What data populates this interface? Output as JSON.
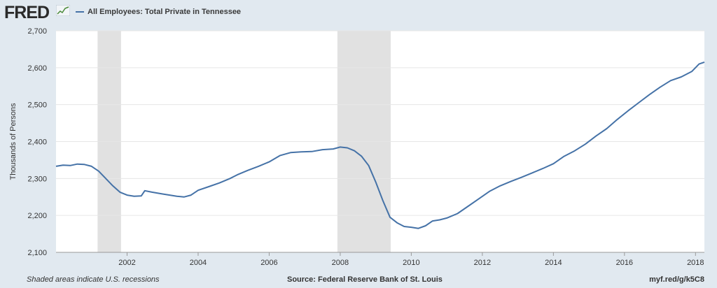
{
  "header": {
    "logo": "FRED",
    "legend": "All Employees: Total Private in Tennessee",
    "series_color": "#4572a7"
  },
  "footer": {
    "note": "Shaded areas indicate U.S. recessions",
    "source": "Source: Federal Reserve Bank of St. Louis",
    "link": "myf.red/g/k5C8"
  },
  "chart_data": {
    "type": "line",
    "title": "",
    "xlabel": "",
    "ylabel": "Thousands of Persons",
    "xlim": [
      2000.0,
      2018.25
    ],
    "ylim": [
      2100,
      2700
    ],
    "yticks": [
      2100,
      2200,
      2300,
      2400,
      2500,
      2600,
      2700
    ],
    "ytick_labels": [
      "2,100",
      "2,200",
      "2,300",
      "2,400",
      "2,500",
      "2,600",
      "2,700"
    ],
    "xticks": [
      2002,
      2004,
      2006,
      2008,
      2010,
      2012,
      2014,
      2016,
      2018
    ],
    "xtick_labels": [
      "2002",
      "2004",
      "2006",
      "2008",
      "2010",
      "2012",
      "2014",
      "2016",
      "2018"
    ],
    "grid": true,
    "recessions": [
      [
        2001.17,
        2001.83
      ],
      [
        2007.92,
        2009.42
      ]
    ],
    "series": [
      {
        "name": "All Employees: Total Private in Tennessee",
        "points": [
          [
            2000.0,
            2333
          ],
          [
            2000.2,
            2336
          ],
          [
            2000.4,
            2335
          ],
          [
            2000.6,
            2339
          ],
          [
            2000.8,
            2338
          ],
          [
            2001.0,
            2333
          ],
          [
            2001.2,
            2320
          ],
          [
            2001.4,
            2300
          ],
          [
            2001.6,
            2280
          ],
          [
            2001.8,
            2263
          ],
          [
            2002.0,
            2255
          ],
          [
            2002.2,
            2252
          ],
          [
            2002.4,
            2253
          ],
          [
            2002.5,
            2267
          ],
          [
            2002.7,
            2263
          ],
          [
            2003.0,
            2258
          ],
          [
            2003.2,
            2255
          ],
          [
            2003.4,
            2252
          ],
          [
            2003.6,
            2250
          ],
          [
            2003.8,
            2255
          ],
          [
            2004.0,
            2268
          ],
          [
            2004.3,
            2278
          ],
          [
            2004.6,
            2288
          ],
          [
            2004.9,
            2300
          ],
          [
            2005.1,
            2310
          ],
          [
            2005.4,
            2322
          ],
          [
            2005.7,
            2333
          ],
          [
            2006.0,
            2345
          ],
          [
            2006.3,
            2362
          ],
          [
            2006.6,
            2370
          ],
          [
            2006.9,
            2372
          ],
          [
            2007.2,
            2373
          ],
          [
            2007.5,
            2378
          ],
          [
            2007.8,
            2380
          ],
          [
            2008.0,
            2385
          ],
          [
            2008.2,
            2383
          ],
          [
            2008.4,
            2375
          ],
          [
            2008.6,
            2360
          ],
          [
            2008.8,
            2335
          ],
          [
            2009.0,
            2290
          ],
          [
            2009.2,
            2240
          ],
          [
            2009.4,
            2195
          ],
          [
            2009.6,
            2180
          ],
          [
            2009.8,
            2170
          ],
          [
            2010.0,
            2168
          ],
          [
            2010.2,
            2165
          ],
          [
            2010.4,
            2172
          ],
          [
            2010.6,
            2185
          ],
          [
            2010.8,
            2188
          ],
          [
            2011.0,
            2193
          ],
          [
            2011.3,
            2205
          ],
          [
            2011.6,
            2225
          ],
          [
            2011.9,
            2245
          ],
          [
            2012.2,
            2265
          ],
          [
            2012.5,
            2280
          ],
          [
            2012.8,
            2292
          ],
          [
            2013.1,
            2303
          ],
          [
            2013.4,
            2315
          ],
          [
            2013.7,
            2327
          ],
          [
            2014.0,
            2340
          ],
          [
            2014.3,
            2360
          ],
          [
            2014.6,
            2375
          ],
          [
            2014.9,
            2393
          ],
          [
            2015.2,
            2415
          ],
          [
            2015.5,
            2435
          ],
          [
            2015.8,
            2460
          ],
          [
            2016.1,
            2483
          ],
          [
            2016.4,
            2505
          ],
          [
            2016.7,
            2527
          ],
          [
            2017.0,
            2547
          ],
          [
            2017.3,
            2565
          ],
          [
            2017.6,
            2575
          ],
          [
            2017.9,
            2590
          ],
          [
            2018.1,
            2610
          ],
          [
            2018.25,
            2615
          ]
        ]
      }
    ]
  }
}
